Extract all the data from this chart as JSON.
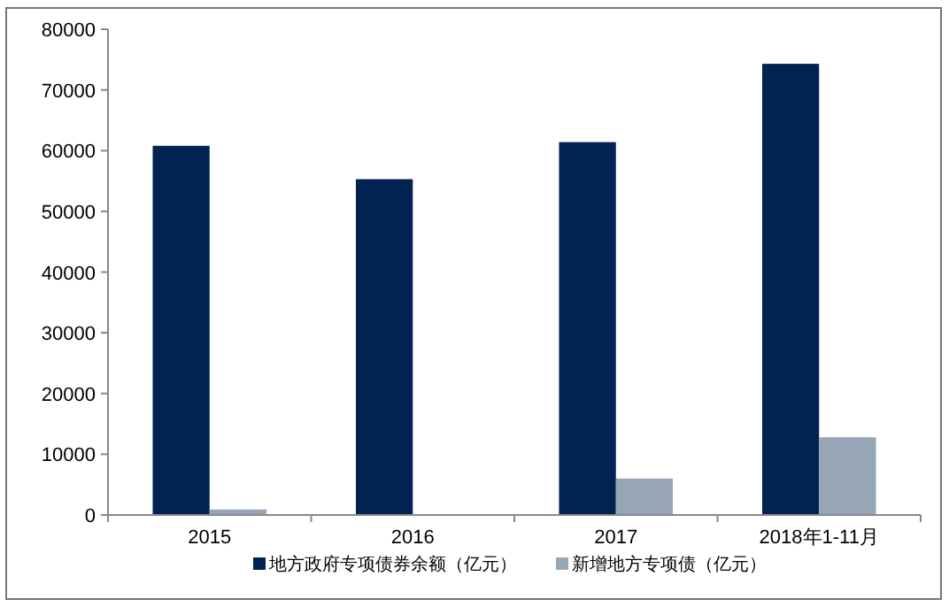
{
  "chart_data": {
    "type": "bar",
    "categories": [
      "2015",
      "2016",
      "2017",
      "2018年1-11月"
    ],
    "series": [
      {
        "name": "地方政府专项债券余额（亿元）",
        "color": "#002352",
        "values": [
          60800,
          55300,
          61400,
          74300
        ]
      },
      {
        "name": "新增地方专项债（亿元）",
        "color": "#97a6b6",
        "values": [
          900,
          0,
          6000,
          12800
        ]
      }
    ],
    "ylim": [
      0,
      80000
    ],
    "yticks": [
      0,
      10000,
      20000,
      30000,
      40000,
      50000,
      60000,
      70000,
      80000
    ],
    "grid": false,
    "legend": "bottom"
  }
}
